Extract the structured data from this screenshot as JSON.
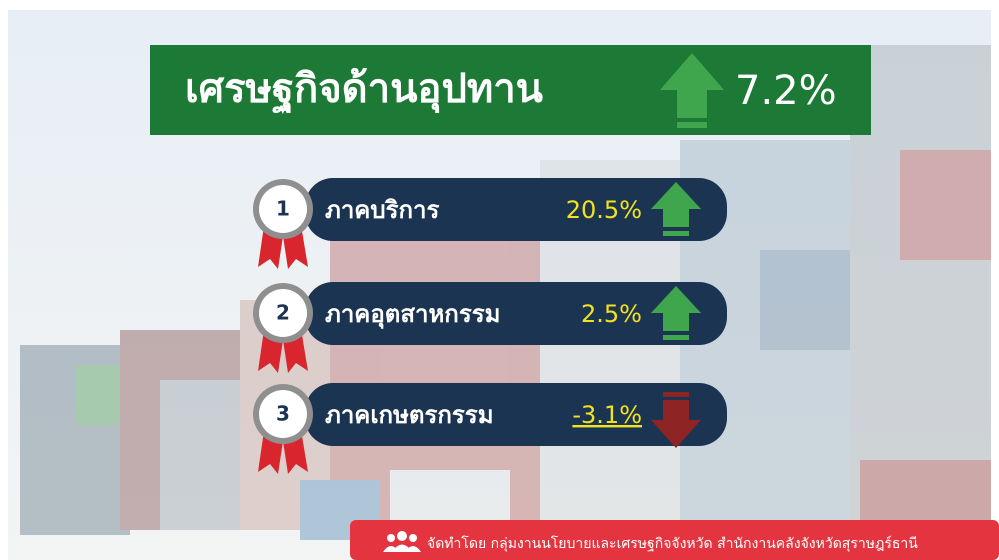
{
  "header": {
    "title": "เศรษฐกิจด้านอุปทาน",
    "value": "7.2%"
  },
  "items": [
    {
      "rank": 1,
      "label": "ภาคบริการ",
      "value": "20.5%"
    },
    {
      "rank": 2,
      "label": "ภาคอุตสาหกรรม",
      "value": "2.5%"
    },
    {
      "rank": 3,
      "label": "ภาคเกษตรกรรม",
      "value": "-3.1%"
    }
  ],
  "footer": {
    "text": "จัดทำโดย กลุ่มงานนโยบายและเศรษฐกิจจังหวัด สำนักงานคลังจังหวัดสุราษฎร์ธานี"
  }
}
